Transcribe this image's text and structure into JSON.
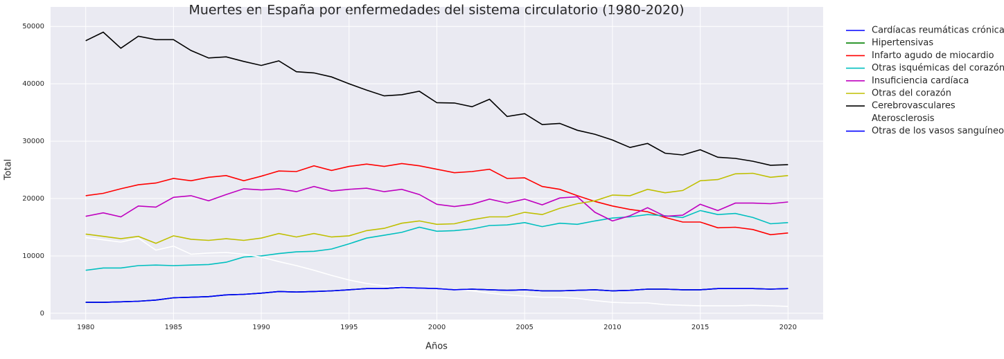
{
  "chart_data": {
    "type": "line",
    "title": "Muertes en España por enfermedades del sistema circulatorio (1980-2020)",
    "xlabel": "Años",
    "ylabel": "Total",
    "x": [
      1980,
      1981,
      1982,
      1983,
      1984,
      1985,
      1986,
      1987,
      1988,
      1989,
      1990,
      1991,
      1992,
      1993,
      1994,
      1995,
      1996,
      1997,
      1998,
      1999,
      2000,
      2001,
      2002,
      2003,
      2004,
      2005,
      2006,
      2007,
      2008,
      2009,
      2010,
      2011,
      2012,
      2013,
      2014,
      2015,
      2016,
      2017,
      2018,
      2019,
      2020
    ],
    "xlim": [
      1978,
      2022
    ],
    "xticks": [
      1980,
      1985,
      1990,
      1995,
      2000,
      2005,
      2010,
      2015,
      2020
    ],
    "ylim": [
      -1100,
      53400
    ],
    "yticks": [
      0,
      10000,
      20000,
      30000,
      40000,
      50000
    ],
    "grid": true,
    "legend": "outside right",
    "series": [
      {
        "name": "Cardíacas reumáticas crónicas",
        "color": "#0000ff",
        "values": [
          1900,
          1900,
          2000,
          2100,
          2300,
          2700,
          2800,
          2900,
          3200,
          3300,
          3500,
          3800,
          3700,
          3800,
          3900,
          4100,
          4300,
          4300,
          4500,
          4400,
          4300,
          4100,
          4200,
          4100,
          4000,
          4100,
          3900,
          3900,
          4000,
          4100,
          3900,
          4000,
          4200,
          4200,
          4100,
          4100,
          4300,
          4300,
          4300,
          4200,
          4300
        ]
      },
      {
        "name": "Hipertensivas",
        "color": "#008000",
        "values": [
          1900,
          1900,
          2000,
          2100,
          2300,
          2700,
          2800,
          2900,
          3200,
          3300,
          3500,
          3800,
          3700,
          3800,
          3900,
          4100,
          4300,
          4300,
          4500,
          4400,
          4300,
          4100,
          4200,
          4100,
          4000,
          4100,
          3900,
          3900,
          4000,
          4100,
          3900,
          4000,
          4200,
          4200,
          4100,
          4100,
          4300,
          4300,
          4300,
          4200,
          4300
        ]
      },
      {
        "name": "Infarto agudo de miocardio",
        "color": "#ff0000",
        "values": [
          20500,
          20900,
          21700,
          22400,
          22700,
          23500,
          23100,
          23700,
          24000,
          23100,
          23900,
          24800,
          24700,
          25700,
          24900,
          25600,
          26000,
          25600,
          26100,
          25700,
          25100,
          24500,
          24700,
          25100,
          23500,
          23600,
          22100,
          21600,
          20500,
          19500,
          18700,
          18100,
          17700,
          16700,
          15900,
          15900,
          14900,
          15000,
          14600,
          13700,
          14000
        ]
      },
      {
        "name": "Otras isquémicas del corazón",
        "color": "#00bfbf",
        "values": [
          7500,
          7900,
          7900,
          8300,
          8400,
          8300,
          8400,
          8500,
          8900,
          9800,
          10000,
          10400,
          10700,
          10800,
          11200,
          12100,
          13100,
          13600,
          14100,
          15000,
          14300,
          14400,
          14700,
          15300,
          15400,
          15800,
          15100,
          15700,
          15500,
          16100,
          16600,
          16800,
          17200,
          17000,
          16700,
          17900,
          17200,
          17400,
          16700,
          15600,
          15800
        ]
      },
      {
        "name": "Insuficiencia cardíaca",
        "color": "#bf00bf",
        "values": [
          16900,
          17500,
          16800,
          18700,
          18500,
          20200,
          20500,
          19600,
          20700,
          21700,
          21500,
          21700,
          21200,
          22100,
          21300,
          21600,
          21800,
          21200,
          21600,
          20700,
          19000,
          18600,
          19000,
          19900,
          19200,
          19900,
          18900,
          20100,
          20300,
          17600,
          16100,
          17000,
          18400,
          16900,
          17100,
          19000,
          17900,
          19200,
          19200,
          19100,
          19400
        ]
      },
      {
        "name": "Otras del corazón",
        "color": "#bfbf00",
        "values": [
          13800,
          13400,
          13000,
          13400,
          12200,
          13500,
          12900,
          12700,
          13000,
          12700,
          13100,
          13900,
          13300,
          13900,
          13300,
          13500,
          14400,
          14800,
          15700,
          16100,
          15500,
          15600,
          16300,
          16800,
          16800,
          17600,
          17200,
          18300,
          19100,
          19600,
          20600,
          20500,
          21600,
          21000,
          21400,
          23100,
          23300,
          24300,
          24400,
          23700,
          24000
        ]
      },
      {
        "name": "Cerebrovasculares",
        "color": "#000000",
        "values": [
          47500,
          49000,
          46200,
          48300,
          47700,
          47700,
          45800,
          44500,
          44700,
          43900,
          43200,
          44000,
          42100,
          41900,
          41200,
          40000,
          38900,
          37900,
          38100,
          38700,
          36700,
          36650,
          36000,
          37300,
          34300,
          34800,
          32900,
          33100,
          31900,
          31200,
          30200,
          28900,
          29600,
          27900,
          27600,
          28500,
          27200,
          27000,
          26500,
          25800,
          25900
        ]
      },
      {
        "name": "Aterosclerosis",
        "color": "#ffffff",
        "values": [
          13200,
          12800,
          12400,
          13100,
          11000,
          11700,
          10300,
          10500,
          10600,
          10300,
          9800,
          9000,
          8300,
          7500,
          6600,
          5800,
          5200,
          4800,
          4600,
          4400,
          4300,
          4100,
          3900,
          3500,
          3200,
          3000,
          2800,
          2800,
          2600,
          2200,
          1900,
          1800,
          1800,
          1500,
          1400,
          1300,
          1300,
          1300,
          1400,
          1300,
          1200
        ]
      },
      {
        "name": "Otras de los vasos sanguíneos",
        "color": "#0000ff",
        "values": [
          1900,
          1900,
          2000,
          2100,
          2300,
          2700,
          2800,
          2900,
          3200,
          3300,
          3500,
          3800,
          3700,
          3800,
          3900,
          4100,
          4300,
          4300,
          4500,
          4400,
          4300,
          4100,
          4200,
          4100,
          4000,
          4100,
          3900,
          3900,
          4000,
          4100,
          3900,
          4000,
          4200,
          4200,
          4100,
          4100,
          4300,
          4300,
          4300,
          4200,
          4300
        ]
      }
    ]
  }
}
